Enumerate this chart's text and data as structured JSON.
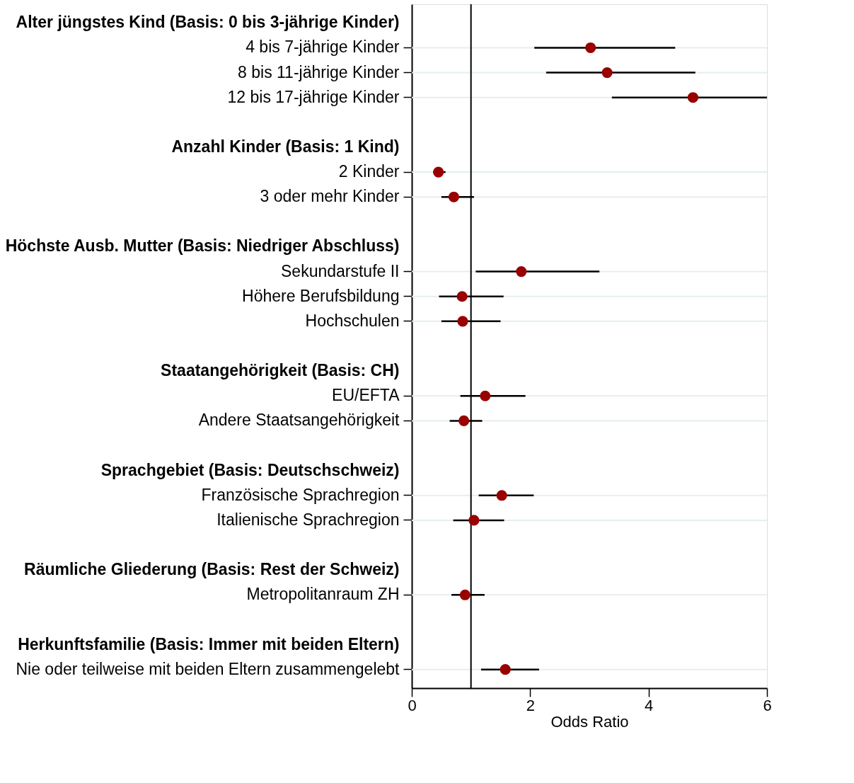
{
  "chart_data": {
    "type": "scatter",
    "xlabel": "Odds Ratio",
    "categories": [
      "Alter jüngstes Kind (Basis: 0 bis 3-jährige Kinder)",
      "4 bis 7-jährige Kinder",
      "8 bis 11-jährige Kinder",
      "12 bis 17-jährige Kinder",
      null,
      "Anzahl Kinder (Basis: 1 Kind)",
      "2 Kinder",
      "3 oder mehr Kinder",
      null,
      "Höchste Ausb. Mutter (Basis: Niedriger Abschluss)",
      "Sekundarstufe II",
      "Höhere Berufsbildung",
      "Hochschulen",
      null,
      "Staatangehörigkeit (Basis: CH)",
      "EU/EFTA",
      "Andere Staatsangehörigkeit",
      null,
      "Sprachgebiet (Basis: Deutschschweiz)",
      "Französische Sprachregion",
      "Italienische Sprachregion",
      null,
      "Räumliche Gliederung (Basis: Rest der Schweiz)",
      "Metropolitanraum ZH",
      null,
      "Herkunftsfamilie (Basis: Immer mit beiden Eltern)",
      "Nie oder teilweise mit beiden Eltern zusammengelebt"
    ],
    "series": [
      {
        "color": "#990000",
        "values": [
          null,
          3.02,
          3.3,
          4.75,
          null,
          null,
          0.45,
          0.71,
          null,
          null,
          1.85,
          0.85,
          0.86,
          null,
          null,
          1.24,
          0.88,
          null,
          null,
          1.52,
          1.05,
          null,
          null,
          0.9,
          null,
          null,
          1.58
        ],
        "errors": [
          null,
          [
            2.07,
            4.45
          ],
          [
            2.27,
            4.79
          ],
          [
            3.38,
            6.0
          ],
          null,
          null,
          [
            0.36,
            0.57
          ],
          [
            0.5,
            1.05
          ],
          null,
          null,
          [
            1.08,
            3.17
          ],
          [
            0.46,
            1.55
          ],
          [
            0.5,
            1.5
          ],
          null,
          null,
          [
            0.82,
            1.92
          ],
          [
            0.64,
            1.19
          ],
          null,
          null,
          [
            1.13,
            2.06
          ],
          [
            0.7,
            1.56
          ],
          null,
          null,
          [
            0.67,
            1.23
          ],
          null,
          null,
          [
            1.17,
            2.15
          ]
        ]
      }
    ],
    "orientation": "horizontal",
    "xlim": [
      0,
      6
    ],
    "xticks": [
      0,
      2,
      4,
      6
    ],
    "marker": "circle",
    "grid": "y",
    "ref_lines": [
      {
        "axis": "x",
        "value": 1,
        "color": "#000000"
      }
    ]
  }
}
